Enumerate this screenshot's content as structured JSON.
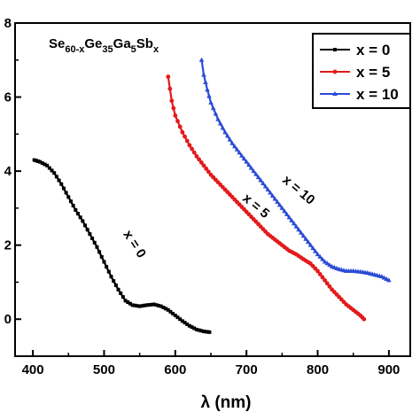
{
  "chart_data": {
    "type": "scatter",
    "xlabel": "λ (nm)",
    "ylabel": "",
    "xlim": [
      375,
      930
    ],
    "ylim": [
      -1.0,
      8.0
    ],
    "xticks": [
      400,
      500,
      600,
      700,
      800,
      900
    ],
    "yticks": [
      0,
      2,
      4,
      6,
      8
    ],
    "ytick_labels": [
      "0",
      "2",
      "4",
      "6",
      "8"
    ],
    "grid": false,
    "legend_position": "top-right",
    "formula": {
      "base": "Se",
      "s1": "60-x",
      "b2": "Ge",
      "s2": "35",
      "b3": "Ga",
      "s3": "5",
      "b4": "Sb",
      "s4": "x"
    },
    "series": [
      {
        "name": "x = 0",
        "color": "#000000",
        "marker": "square",
        "annotation": "x = 0",
        "x": [
          402,
          410,
          420,
          430,
          440,
          450,
          460,
          470,
          480,
          490,
          500,
          510,
          520,
          530,
          540,
          550,
          560,
          570,
          580,
          590,
          600,
          610,
          620,
          630,
          640,
          648
        ],
        "y": [
          4.3,
          4.25,
          4.15,
          3.95,
          3.65,
          3.3,
          2.95,
          2.65,
          2.3,
          1.95,
          1.55,
          1.15,
          0.8,
          0.5,
          0.38,
          0.35,
          0.38,
          0.4,
          0.35,
          0.25,
          0.1,
          -0.05,
          -0.18,
          -0.28,
          -0.33,
          -0.35
        ]
      },
      {
        "name": "x = 5",
        "color": "#e31a1c",
        "marker": "circle",
        "annotation": "x = 5",
        "x": [
          590,
          595,
          600,
          610,
          620,
          630,
          640,
          650,
          660,
          670,
          680,
          690,
          700,
          710,
          720,
          730,
          740,
          750,
          760,
          770,
          780,
          790,
          800,
          810,
          820,
          830,
          840,
          850,
          860,
          865
        ],
        "y": [
          6.55,
          5.9,
          5.5,
          5.05,
          4.7,
          4.4,
          4.15,
          3.9,
          3.7,
          3.5,
          3.3,
          3.1,
          2.9,
          2.7,
          2.5,
          2.3,
          2.15,
          2.0,
          1.85,
          1.75,
          1.62,
          1.5,
          1.3,
          1.05,
          0.8,
          0.6,
          0.4,
          0.25,
          0.1,
          0.0
        ]
      },
      {
        "name": "x = 10",
        "color": "#2b4bd6",
        "marker": "triangle",
        "annotation": "x = 10",
        "x": [
          637,
          640,
          645,
          650,
          660,
          670,
          680,
          690,
          700,
          710,
          720,
          730,
          740,
          750,
          760,
          770,
          780,
          790,
          800,
          810,
          820,
          830,
          840,
          850,
          860,
          870,
          880,
          890,
          900
        ],
        "y": [
          7.0,
          6.6,
          6.2,
          5.85,
          5.4,
          5.05,
          4.75,
          4.5,
          4.25,
          4.0,
          3.75,
          3.5,
          3.25,
          3.0,
          2.75,
          2.5,
          2.25,
          2.0,
          1.75,
          1.55,
          1.42,
          1.35,
          1.3,
          1.3,
          1.28,
          1.25,
          1.2,
          1.15,
          1.05
        ]
      }
    ]
  }
}
